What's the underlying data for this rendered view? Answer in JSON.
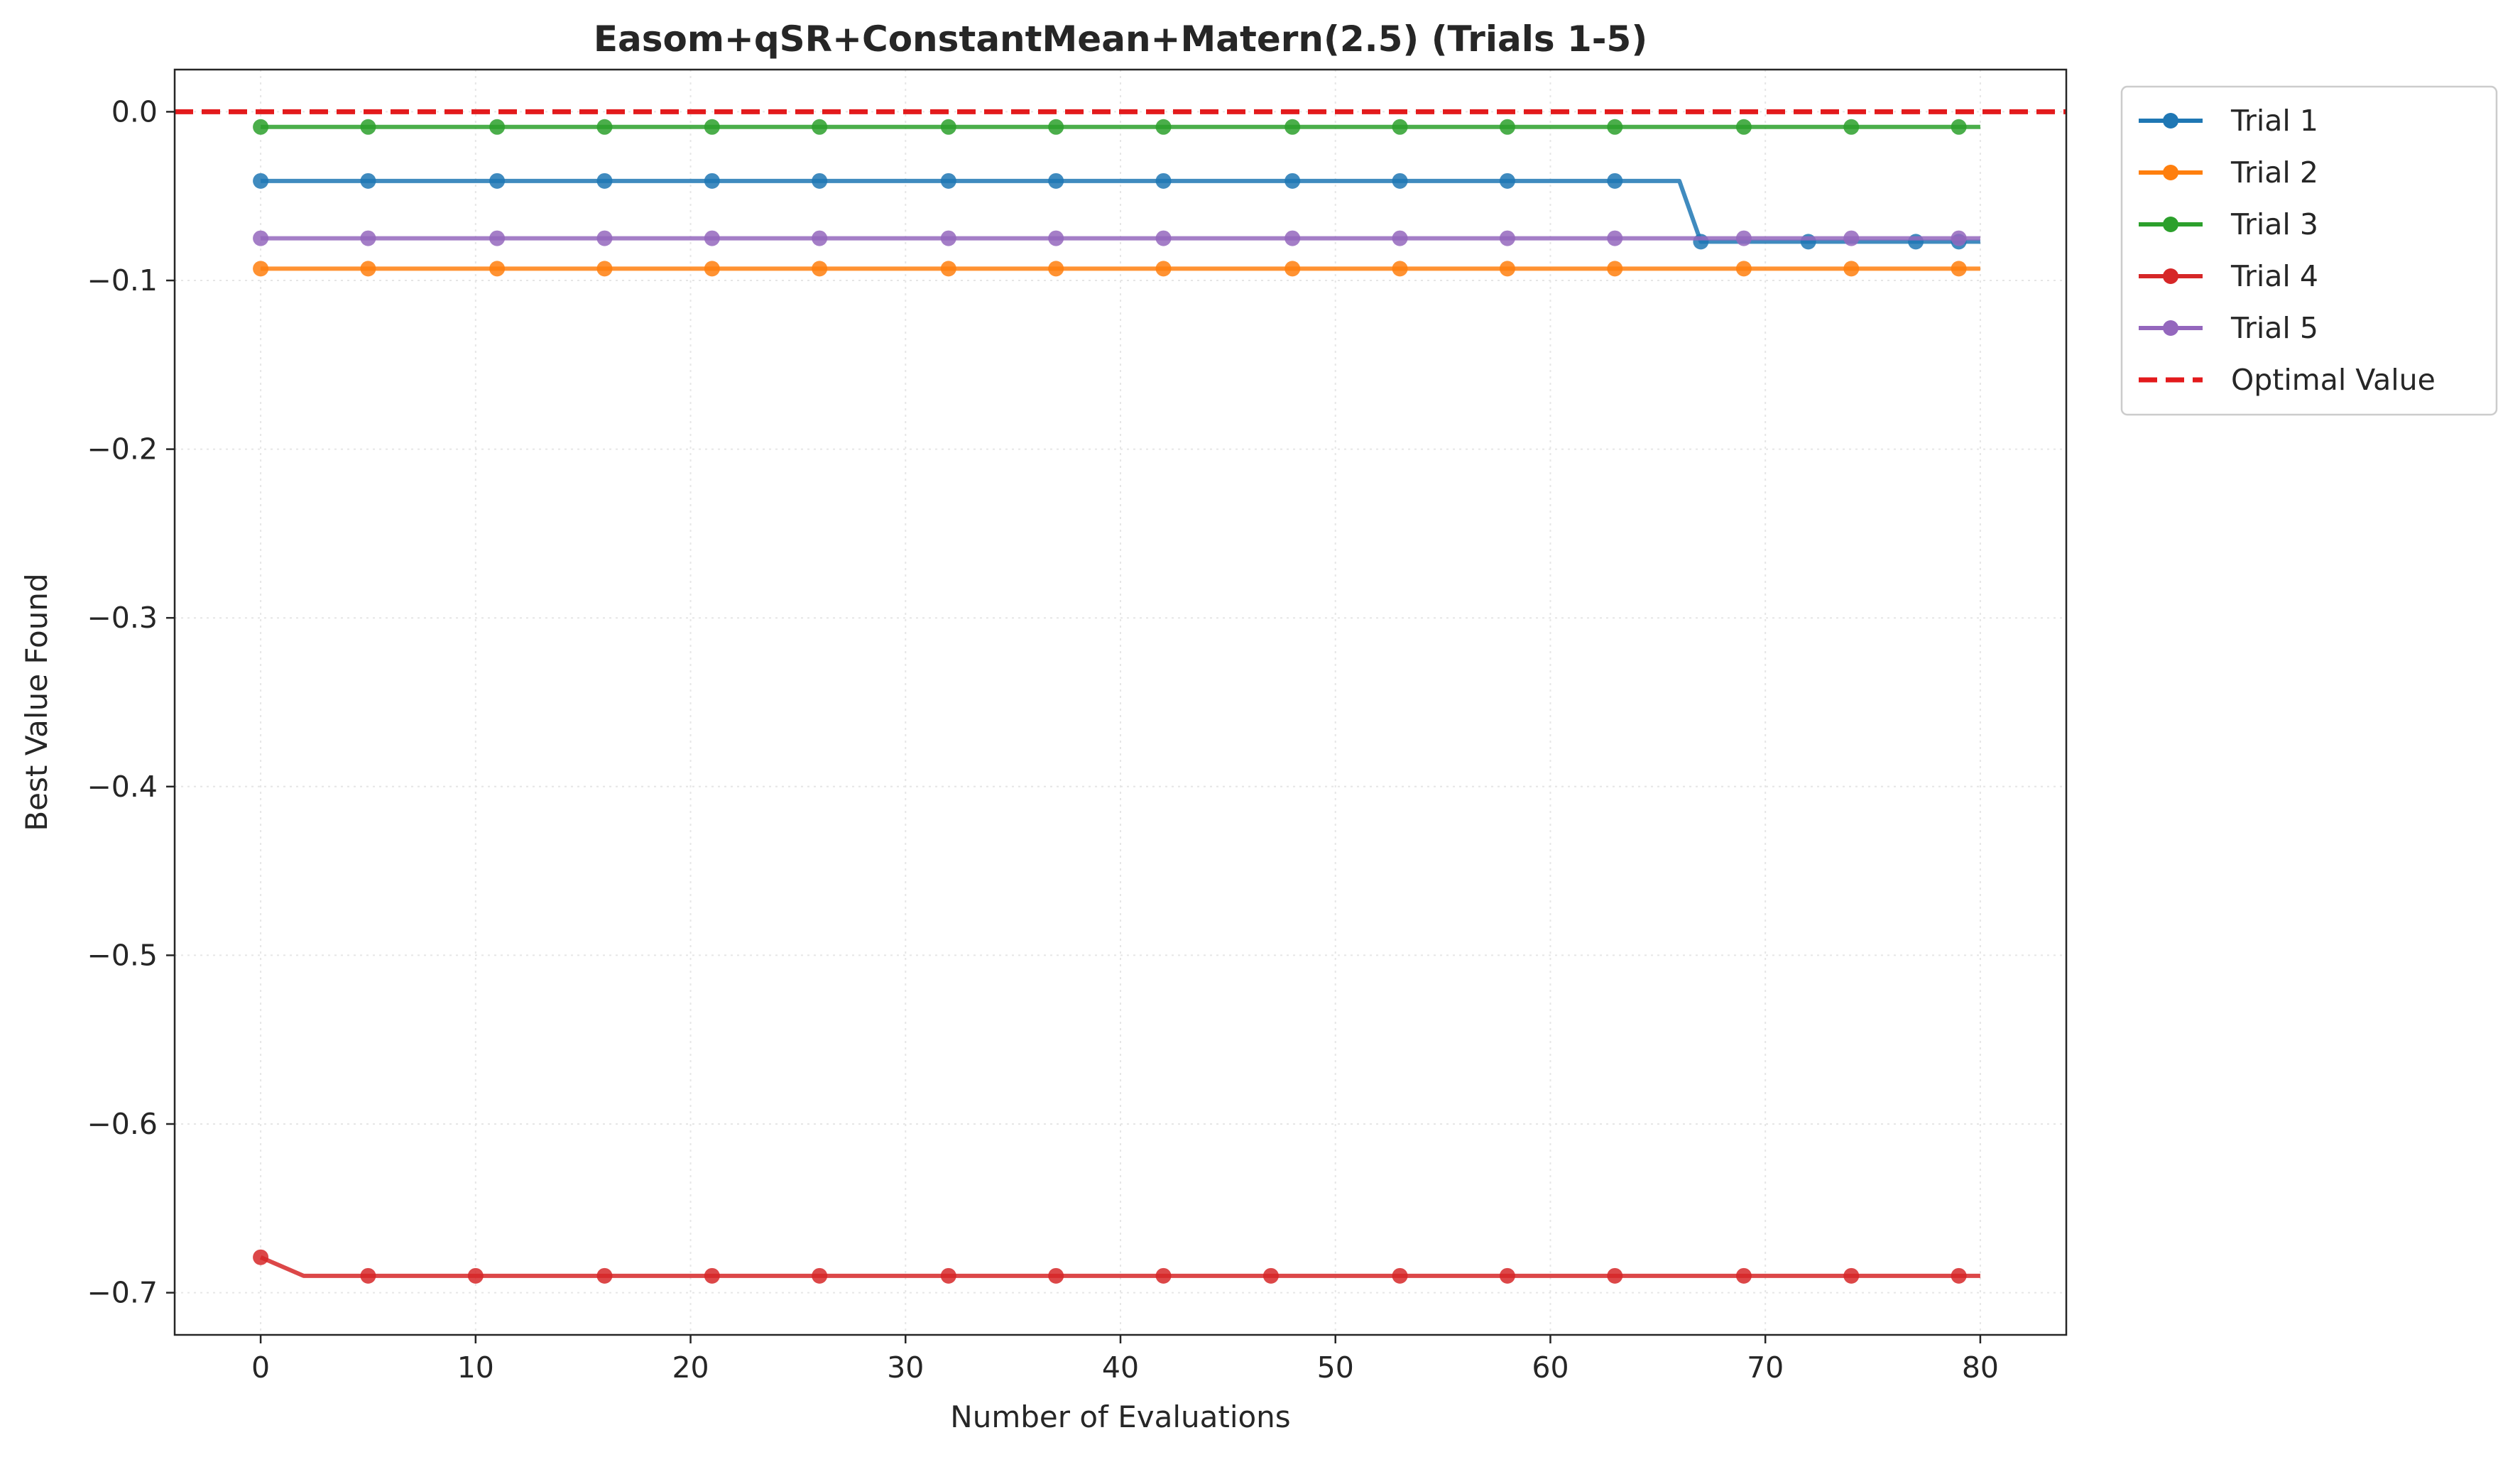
{
  "chart_data": {
    "type": "line",
    "title": "Easom+qSR+ConstantMean+Matern(2.5) (Trials 1-5)",
    "xlabel": "Number of Evaluations",
    "ylabel": "Best Value Found",
    "xlim": [
      -4,
      84
    ],
    "ylim": [
      -0.725,
      0.025
    ],
    "xticks": [
      0,
      10,
      20,
      30,
      40,
      50,
      60,
      70,
      80
    ],
    "yticks": [
      0.0,
      -0.1,
      -0.2,
      -0.3,
      -0.4,
      -0.5,
      -0.6,
      -0.7
    ],
    "xtick_labels": [
      "0",
      "10",
      "20",
      "30",
      "40",
      "50",
      "60",
      "70",
      "80"
    ],
    "ytick_labels": [
      "0.0",
      "−0.1",
      "−0.2",
      "−0.3",
      "−0.4",
      "−0.5",
      "−0.6",
      "−0.7"
    ],
    "grid": true,
    "legend_position": "outside-upper-right",
    "series": [
      {
        "name": "Trial 1",
        "color": "#1f77b4",
        "x": [
          0,
          66,
          67,
          80
        ],
        "y": [
          -0.041,
          -0.041,
          -0.077,
          -0.077
        ],
        "marker_x": [
          0,
          5,
          11,
          16,
          21,
          26,
          32,
          37,
          42,
          48,
          53,
          58,
          63,
          67,
          72,
          77,
          79
        ],
        "marker_y": [
          -0.041,
          -0.041,
          -0.041,
          -0.041,
          -0.041,
          -0.041,
          -0.041,
          -0.041,
          -0.041,
          -0.041,
          -0.041,
          -0.041,
          -0.041,
          -0.077,
          -0.077,
          -0.077,
          -0.077
        ]
      },
      {
        "name": "Trial 2",
        "color": "#ff7f0e",
        "x": [
          0,
          80
        ],
        "y": [
          -0.093,
          -0.093
        ],
        "marker_x": [
          0,
          5,
          11,
          16,
          21,
          26,
          32,
          37,
          42,
          48,
          53,
          58,
          63,
          69,
          74,
          79
        ],
        "marker_y": [
          -0.093,
          -0.093,
          -0.093,
          -0.093,
          -0.093,
          -0.093,
          -0.093,
          -0.093,
          -0.093,
          -0.093,
          -0.093,
          -0.093,
          -0.093,
          -0.093,
          -0.093,
          -0.093
        ]
      },
      {
        "name": "Trial 3",
        "color": "#2ca02c",
        "x": [
          0,
          80
        ],
        "y": [
          -0.009,
          -0.009
        ],
        "marker_x": [
          0,
          5,
          11,
          16,
          21,
          26,
          32,
          37,
          42,
          48,
          53,
          58,
          63,
          69,
          74,
          79
        ],
        "marker_y": [
          -0.009,
          -0.009,
          -0.009,
          -0.009,
          -0.009,
          -0.009,
          -0.009,
          -0.009,
          -0.009,
          -0.009,
          -0.009,
          -0.009,
          -0.009,
          -0.009,
          -0.009,
          -0.009
        ]
      },
      {
        "name": "Trial 4",
        "color": "#d62728",
        "x": [
          0,
          2,
          80
        ],
        "y": [
          -0.679,
          -0.69,
          -0.69
        ],
        "marker_x": [
          0,
          5,
          10,
          16,
          21,
          26,
          32,
          37,
          42,
          47,
          53,
          58,
          63,
          69,
          74,
          79
        ],
        "marker_y": [
          -0.679,
          -0.69,
          -0.69,
          -0.69,
          -0.69,
          -0.69,
          -0.69,
          -0.69,
          -0.69,
          -0.69,
          -0.69,
          -0.69,
          -0.69,
          -0.69,
          -0.69,
          -0.69
        ]
      },
      {
        "name": "Trial 5",
        "color": "#9467bd",
        "x": [
          0,
          80
        ],
        "y": [
          -0.075,
          -0.075
        ],
        "marker_x": [
          0,
          5,
          11,
          16,
          21,
          26,
          32,
          37,
          42,
          48,
          53,
          58,
          63,
          69,
          74,
          79
        ],
        "marker_y": [
          -0.075,
          -0.075,
          -0.075,
          -0.075,
          -0.075,
          -0.075,
          -0.075,
          -0.075,
          -0.075,
          -0.075,
          -0.075,
          -0.075,
          -0.075,
          -0.075,
          -0.075,
          -0.075
        ]
      }
    ],
    "reference_line": {
      "name": "Optimal Value",
      "color": "#e31a1c",
      "y": 0.0,
      "style": "dashed"
    }
  }
}
